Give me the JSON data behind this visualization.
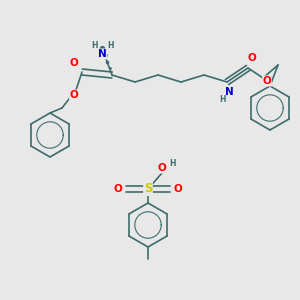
{
  "background_color": "#e8e8e8",
  "figsize": [
    3.0,
    3.0
  ],
  "dpi": 100,
  "bond_color": "#3d6b6b",
  "bond_width": 1.2,
  "atom_colors": {
    "C": "#3d6b6b",
    "N": "#0000cc",
    "O": "#ff0000",
    "S": "#cccc00",
    "H": "#3d6b6b"
  },
  "font_size_atom": 6.5,
  "font_size_h": 5.5
}
